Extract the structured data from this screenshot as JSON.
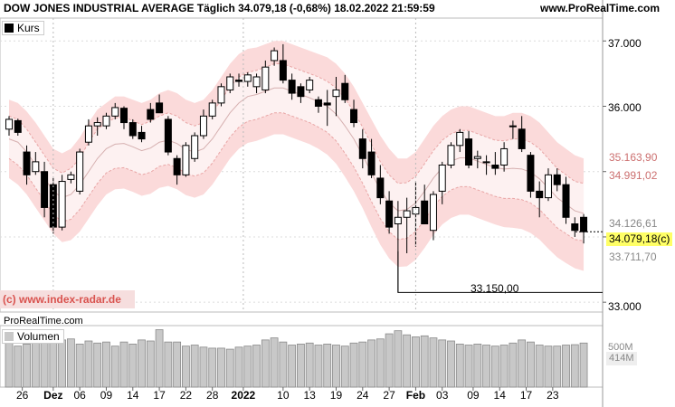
{
  "header": {
    "title": "DOW JONES INDUSTRIAL AVERAGE Täglich 34.079,18 (-0,68%) 18.02.2022 21:59:59",
    "site": "www.ProRealTime.com"
  },
  "legend": {
    "price": "Kurs",
    "volume": "Volumen"
  },
  "watermark": "(c) www.index-radar.de",
  "source_label": "ProRealTime.com",
  "colors": {
    "band_outer": "#fbdada",
    "band_inner": "#fdf1f1",
    "band_line": "#e9a6a6",
    "bullish": "#ffffff",
    "bearish": "#000000",
    "volume": "#c8c8c8",
    "grid": "#dcdcdc",
    "last_price_bg": "#ffff66"
  },
  "price_labels": [
    {
      "text": "35.163,90",
      "value": 35163.9,
      "color": "#cc7070"
    },
    {
      "text": "34.991,02",
      "value": 34991.02,
      "color": "#cc7070"
    },
    {
      "text": "34.126,61",
      "value": 34126.61,
      "color": "#888888"
    },
    {
      "text": "34.079,18(c)",
      "value": 34079.18,
      "color": "#000000"
    },
    {
      "text": "33.711,70",
      "value": 33711.7,
      "color": "#888888"
    }
  ],
  "volume_labels": [
    "500M",
    "414M"
  ],
  "annotation": {
    "text": "33.150,00",
    "value": 33150
  },
  "chart_data": {
    "type": "candlestick",
    "y_ticks": [
      {
        "label": "37.000",
        "value": 37000
      },
      {
        "label": "36.000",
        "value": 36000
      },
      {
        "label": "35.000",
        "value": 35000
      },
      {
        "label": "34.000",
        "value": 34000
      },
      {
        "label": "33.000",
        "value": 33000
      }
    ],
    "ylim": [
      32850,
      37350
    ],
    "x_ticks": [
      {
        "label": "26",
        "i": 1.5,
        "bold": false
      },
      {
        "label": "Dez",
        "i": 5,
        "bold": true
      },
      {
        "label": "06",
        "i": 8,
        "bold": false
      },
      {
        "label": "09",
        "i": 11,
        "bold": false
      },
      {
        "label": "14",
        "i": 14,
        "bold": false
      },
      {
        "label": "17",
        "i": 17,
        "bold": false
      },
      {
        "label": "22",
        "i": 20,
        "bold": false
      },
      {
        "label": "28",
        "i": 23,
        "bold": false
      },
      {
        "label": "2022",
        "i": 26.5,
        "bold": true
      },
      {
        "label": "10",
        "i": 31,
        "bold": false
      },
      {
        "label": "13",
        "i": 34,
        "bold": false
      },
      {
        "label": "19",
        "i": 37,
        "bold": false
      },
      {
        "label": "24",
        "i": 40,
        "bold": false
      },
      {
        "label": "27",
        "i": 43,
        "bold": false
      },
      {
        "label": "Feb",
        "i": 46,
        "bold": true
      },
      {
        "label": "03",
        "i": 49,
        "bold": false
      },
      {
        "label": "09",
        "i": 52.5,
        "bold": false
      },
      {
        "label": "14",
        "i": 55.5,
        "bold": false
      },
      {
        "label": "17",
        "i": 58.5,
        "bold": false
      },
      {
        "label": "23",
        "i": 61.5,
        "bold": false
      }
    ],
    "candles": [
      {
        "o": 35650,
        "h": 35850,
        "l": 35550,
        "c": 35800
      },
      {
        "o": 35780,
        "h": 35810,
        "l": 35550,
        "c": 35600
      },
      {
        "o": 35300,
        "h": 35400,
        "l": 34800,
        "c": 34950
      },
      {
        "o": 35000,
        "h": 35300,
        "l": 34950,
        "c": 35150
      },
      {
        "o": 35000,
        "h": 35150,
        "l": 34300,
        "c": 34450
      },
      {
        "o": 34800,
        "h": 34900,
        "l": 34050,
        "c": 34150
      },
      {
        "o": 34150,
        "h": 34950,
        "l": 34100,
        "c": 34850
      },
      {
        "o": 34880,
        "h": 35000,
        "l": 34820,
        "c": 34950
      },
      {
        "o": 34700,
        "h": 35350,
        "l": 34650,
        "c": 35300
      },
      {
        "o": 35450,
        "h": 35800,
        "l": 35400,
        "c": 35700
      },
      {
        "o": 35700,
        "h": 35830,
        "l": 35550,
        "c": 35750
      },
      {
        "o": 35700,
        "h": 35900,
        "l": 35650,
        "c": 35850
      },
      {
        "o": 35850,
        "h": 36050,
        "l": 35800,
        "c": 35980
      },
      {
        "o": 35970,
        "h": 36000,
        "l": 35650,
        "c": 35750
      },
      {
        "o": 35750,
        "h": 35800,
        "l": 35500,
        "c": 35550
      },
      {
        "o": 35600,
        "h": 35700,
        "l": 35450,
        "c": 35500
      },
      {
        "o": 35950,
        "h": 36050,
        "l": 35750,
        "c": 35800
      },
      {
        "o": 36050,
        "h": 36180,
        "l": 35900,
        "c": 35900
      },
      {
        "o": 35800,
        "h": 35850,
        "l": 35250,
        "c": 35300
      },
      {
        "o": 35200,
        "h": 35250,
        "l": 34800,
        "c": 34950
      },
      {
        "o": 34950,
        "h": 35450,
        "l": 34920,
        "c": 35400
      },
      {
        "o": 35200,
        "h": 35600,
        "l": 35150,
        "c": 35550
      },
      {
        "o": 35550,
        "h": 35950,
        "l": 35500,
        "c": 35850
      },
      {
        "o": 35850,
        "h": 36100,
        "l": 35800,
        "c": 36050
      },
      {
        "o": 36050,
        "h": 36350,
        "l": 36000,
        "c": 36300
      },
      {
        "o": 36250,
        "h": 36500,
        "l": 36200,
        "c": 36450
      },
      {
        "o": 36400,
        "h": 36500,
        "l": 36300,
        "c": 36380
      },
      {
        "o": 36380,
        "h": 36520,
        "l": 36300,
        "c": 36480
      },
      {
        "o": 36300,
        "h": 36500,
        "l": 36200,
        "c": 36450
      },
      {
        "o": 36250,
        "h": 36700,
        "l": 36200,
        "c": 36600
      },
      {
        "o": 36700,
        "h": 36900,
        "l": 36620,
        "c": 36850
      },
      {
        "o": 36700,
        "h": 36950,
        "l": 36350,
        "c": 36400
      },
      {
        "o": 36400,
        "h": 36500,
        "l": 36100,
        "c": 36200
      },
      {
        "o": 36300,
        "h": 36350,
        "l": 36050,
        "c": 36150
      },
      {
        "o": 36250,
        "h": 36450,
        "l": 36200,
        "c": 36400
      },
      {
        "o": 36100,
        "h": 36150,
        "l": 35900,
        "c": 36000
      },
      {
        "o": 36050,
        "h": 36250,
        "l": 35700,
        "c": 36020
      },
      {
        "o": 36150,
        "h": 36450,
        "l": 35850,
        "c": 36250
      },
      {
        "o": 36350,
        "h": 36480,
        "l": 36050,
        "c": 36100
      },
      {
        "o": 35950,
        "h": 36100,
        "l": 35680,
        "c": 35750
      },
      {
        "o": 35500,
        "h": 35650,
        "l": 35050,
        "c": 35200
      },
      {
        "o": 35300,
        "h": 35500,
        "l": 34900,
        "c": 34950
      },
      {
        "o": 34900,
        "h": 35100,
        "l": 34500,
        "c": 34600
      },
      {
        "o": 34550,
        "h": 34700,
        "l": 34050,
        "c": 34150
      },
      {
        "o": 34200,
        "h": 34550,
        "l": 33150,
        "c": 34300
      },
      {
        "o": 34300,
        "h": 34600,
        "l": 33750,
        "c": 34400
      },
      {
        "o": 34350,
        "h": 34850,
        "l": 33850,
        "c": 34450
      },
      {
        "o": 34550,
        "h": 34800,
        "l": 34200,
        "c": 34200
      },
      {
        "o": 34100,
        "h": 34700,
        "l": 33950,
        "c": 34650
      },
      {
        "o": 34700,
        "h": 35150,
        "l": 34500,
        "c": 35100
      },
      {
        "o": 35100,
        "h": 35450,
        "l": 35050,
        "c": 35400
      },
      {
        "o": 35400,
        "h": 35650,
        "l": 35300,
        "c": 35600
      },
      {
        "o": 35500,
        "h": 35620,
        "l": 35050,
        "c": 35100
      },
      {
        "o": 35200,
        "h": 35320,
        "l": 35050,
        "c": 35230
      },
      {
        "o": 35150,
        "h": 35250,
        "l": 34950,
        "c": 35150
      },
      {
        "o": 35100,
        "h": 35300,
        "l": 34950,
        "c": 35050
      },
      {
        "o": 35100,
        "h": 35450,
        "l": 35000,
        "c": 35350
      },
      {
        "o": 35700,
        "h": 35780,
        "l": 35500,
        "c": 35700
      },
      {
        "o": 35650,
        "h": 35850,
        "l": 35300,
        "c": 35350
      },
      {
        "o": 35250,
        "h": 35300,
        "l": 34600,
        "c": 34700
      },
      {
        "o": 34700,
        "h": 34850,
        "l": 34300,
        "c": 34600
      },
      {
        "o": 34600,
        "h": 35050,
        "l": 34550,
        "c": 34950
      },
      {
        "o": 34950,
        "h": 35050,
        "l": 34700,
        "c": 34800
      },
      {
        "o": 34800,
        "h": 34920,
        "l": 34200,
        "c": 34300
      },
      {
        "o": 34200,
        "h": 34300,
        "l": 34000,
        "c": 34100
      },
      {
        "o": 34300,
        "h": 34350,
        "l": 33900,
        "c": 34079
      }
    ],
    "volumes": [
      430,
      400,
      420,
      470,
      440,
      540,
      460,
      470,
      420,
      450,
      430,
      440,
      400,
      440,
      420,
      460,
      450,
      560,
      440,
      440,
      400,
      410,
      390,
      380,
      380,
      370,
      390,
      400,
      410,
      460,
      480,
      440,
      410,
      420,
      430,
      410,
      420,
      410,
      400,
      430,
      440,
      460,
      470,
      520,
      550,
      510,
      490,
      500,
      480,
      460,
      450,
      420,
      410,
      420,
      410,
      400,
      410,
      430,
      460,
      440,
      410,
      400,
      400,
      410,
      414,
      430
    ],
    "volume_ylim": [
      0,
      600
    ],
    "bands": {
      "outer_upper": [
        36100,
        36050,
        35920,
        35750,
        35550,
        35350,
        35280,
        35350,
        35520,
        35750,
        35950,
        36050,
        36150,
        36150,
        36100,
        36050,
        36100,
        36200,
        36250,
        36200,
        36100,
        36050,
        36100,
        36250,
        36450,
        36650,
        36800,
        36880,
        36900,
        36950,
        37000,
        37000,
        36950,
        36900,
        36850,
        36800,
        36750,
        36650,
        36500,
        36300,
        36050,
        35800,
        35550,
        35350,
        35200,
        35200,
        35300,
        35500,
        35700,
        35850,
        35950,
        36000,
        36000,
        35950,
        35900,
        35850,
        35850,
        35900,
        35900,
        35850,
        35750,
        35600,
        35450,
        35350,
        35250,
        35200
      ],
      "inner_upper": [
        35850,
        35800,
        35650,
        35450,
        35250,
        35050,
        34980,
        35050,
        35200,
        35450,
        35650,
        35750,
        35820,
        35830,
        35780,
        35720,
        35770,
        35850,
        35900,
        35850,
        35750,
        35700,
        35750,
        35900,
        36100,
        36300,
        36450,
        36520,
        36550,
        36600,
        36650,
        36650,
        36600,
        36550,
        36500,
        36450,
        36380,
        36280,
        36120,
        35920,
        35680,
        35420,
        35150,
        34950,
        34820,
        34830,
        34930,
        35120,
        35320,
        35480,
        35580,
        35630,
        35630,
        35580,
        35530,
        35480,
        35470,
        35500,
        35500,
        35450,
        35350,
        35200,
        35050,
        34950,
        34850,
        34820
      ],
      "mid": [
        35500,
        35450,
        35300,
        35100,
        34900,
        34700,
        34600,
        34650,
        34800,
        35000,
        35200,
        35350,
        35420,
        35430,
        35380,
        35320,
        35360,
        35450,
        35480,
        35430,
        35340,
        35300,
        35350,
        35500,
        35700,
        35900,
        36050,
        36150,
        36180,
        36230,
        36280,
        36280,
        36230,
        36180,
        36130,
        36070,
        36000,
        35880,
        35700,
        35500,
        35250,
        34980,
        34720,
        34520,
        34400,
        34420,
        34520,
        34700,
        34900,
        35060,
        35160,
        35210,
        35210,
        35160,
        35110,
        35060,
        35040,
        35050,
        35040,
        34990,
        34890,
        34750,
        34600,
        34500,
        34400,
        34360
      ],
      "inner_lower": [
        35200,
        35100,
        34950,
        34750,
        34550,
        34350,
        34230,
        34270,
        34420,
        34620,
        34820,
        34980,
        35050,
        35060,
        35010,
        34950,
        34990,
        35080,
        35110,
        35060,
        34970,
        34930,
        34980,
        35130,
        35330,
        35530,
        35680,
        35770,
        35800,
        35850,
        35900,
        35900,
        35850,
        35800,
        35750,
        35680,
        35600,
        35470,
        35280,
        35070,
        34820,
        34540,
        34280,
        34080,
        33960,
        33980,
        34080,
        34260,
        34460,
        34620,
        34720,
        34770,
        34770,
        34720,
        34670,
        34620,
        34590,
        34590,
        34570,
        34520,
        34420,
        34280,
        34140,
        34050,
        33960,
        33940
      ],
      "outer_lower": [
        34900,
        34800,
        34650,
        34450,
        34250,
        34050,
        33920,
        33950,
        34080,
        34280,
        34480,
        34650,
        34730,
        34740,
        34690,
        34630,
        34660,
        34750,
        34780,
        34730,
        34640,
        34600,
        34650,
        34800,
        35000,
        35200,
        35350,
        35440,
        35470,
        35520,
        35570,
        35570,
        35520,
        35470,
        35420,
        35350,
        35260,
        35120,
        34920,
        34700,
        34440,
        34150,
        33880,
        33670,
        33540,
        33550,
        33650,
        33830,
        34030,
        34190,
        34290,
        34340,
        34340,
        34290,
        34240,
        34190,
        34150,
        34140,
        34120,
        34060,
        33960,
        33820,
        33690,
        33600,
        33520,
        33480
      ]
    }
  }
}
